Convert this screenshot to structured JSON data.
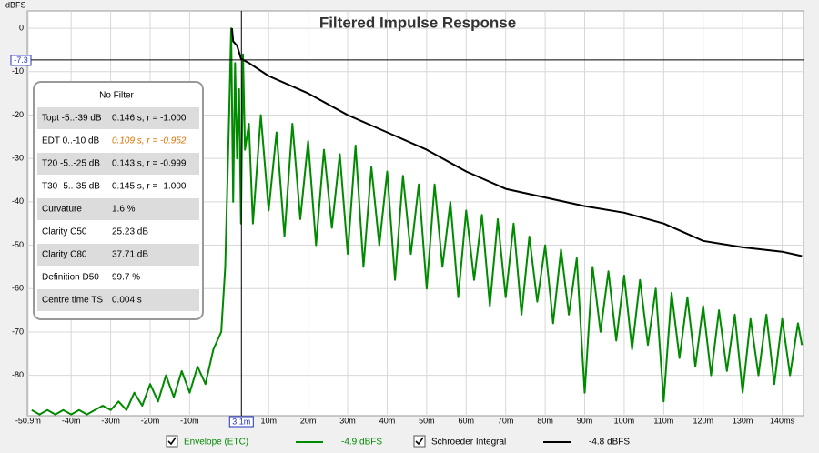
{
  "chart_data": {
    "type": "line",
    "title": "Filtered Impulse Response",
    "y_label": "dBFS",
    "xlim": [
      -51.1,
      145.4
    ],
    "ylim": [
      -89.3,
      4
    ],
    "grid": true,
    "xticks": [
      {
        "value": -50.9,
        "label": "-50.9m"
      },
      {
        "value": -40,
        "label": "-40m"
      },
      {
        "value": -30,
        "label": "-30m"
      },
      {
        "value": -20,
        "label": "-20m"
      },
      {
        "value": -10,
        "label": "-10m"
      },
      {
        "value": 10,
        "label": "10m"
      },
      {
        "value": 20,
        "label": "20m"
      },
      {
        "value": 30,
        "label": "30m"
      },
      {
        "value": 40,
        "label": "40m"
      },
      {
        "value": 50,
        "label": "50m"
      },
      {
        "value": 60,
        "label": "60m"
      },
      {
        "value": 70,
        "label": "70m"
      },
      {
        "value": 80,
        "label": "80m"
      },
      {
        "value": 90,
        "label": "90m"
      },
      {
        "value": 100,
        "label": "100m"
      },
      {
        "value": 110,
        "label": "110m"
      },
      {
        "value": 120,
        "label": "120m"
      },
      {
        "value": 130,
        "label": "130m"
      },
      {
        "value": 140,
        "label": "140ms"
      }
    ],
    "yticks": [
      0,
      -10,
      -20,
      -30,
      -40,
      -50,
      -60,
      -70,
      -80
    ],
    "cursor": {
      "x": {
        "value": 3.1,
        "label": "3.1m"
      },
      "y": {
        "value": -7.3,
        "label": "-7.3"
      }
    },
    "series": [
      {
        "name": "Envelope (ETC)",
        "color": "#008a00",
        "readout": "-4.9 dBFS",
        "x": [
          -50,
          -48,
          -46,
          -44,
          -42,
          -40,
          -38,
          -36,
          -34,
          -32,
          -30,
          -28,
          -26,
          -24,
          -22,
          -20,
          -18,
          -16,
          -14,
          -12,
          -10,
          -8,
          -6,
          -4,
          -2,
          -1,
          0,
          0.5,
          1,
          1.5,
          2,
          2.5,
          3,
          3.5,
          4,
          5,
          6,
          8,
          10,
          12,
          14,
          16,
          18,
          20,
          22,
          24,
          26,
          28,
          30,
          32,
          34,
          36,
          38,
          40,
          42,
          44,
          46,
          48,
          50,
          52,
          54,
          56,
          58,
          60,
          62,
          64,
          66,
          68,
          70,
          72,
          74,
          76,
          78,
          80,
          82,
          84,
          86,
          88,
          90,
          92,
          94,
          96,
          98,
          100,
          102,
          104,
          106,
          108,
          110,
          112,
          114,
          116,
          118,
          120,
          122,
          124,
          126,
          128,
          130,
          132,
          134,
          136,
          138,
          140,
          142,
          144,
          145
        ],
        "values": [
          -88,
          -89,
          -88,
          -89,
          -88,
          -89,
          -88,
          -89,
          -88,
          -87,
          -88,
          -86,
          -88,
          -84,
          -87,
          -82,
          -86,
          -80,
          -85,
          -79,
          -84,
          -78,
          -82,
          -74,
          -70,
          -55,
          -20,
          0,
          -40,
          -8,
          -30,
          -14,
          -45,
          -6,
          -28,
          -22,
          -45,
          -20,
          -42,
          -24,
          -48,
          -22,
          -44,
          -26,
          -50,
          -28,
          -46,
          -29,
          -52,
          -27,
          -55,
          -32,
          -50,
          -33,
          -58,
          -34,
          -52,
          -36,
          -60,
          -36,
          -55,
          -40,
          -62,
          -42,
          -58,
          -43,
          -64,
          -44,
          -62,
          -45,
          -66,
          -48,
          -63,
          -50,
          -68,
          -51,
          -66,
          -53,
          -84,
          -55,
          -70,
          -56,
          -72,
          -57,
          -74,
          -58,
          -73,
          -60,
          -86,
          -61,
          -76,
          -62,
          -78,
          -64,
          -80,
          -65,
          -79,
          -66,
          -84,
          -67,
          -80,
          -66,
          -82,
          -67,
          -80,
          -68,
          -73
        ]
      },
      {
        "name": "Schroeder Integral",
        "color": "#000000",
        "readout": "-4.8 dBFS",
        "x": [
          0.7,
          1,
          2,
          3,
          5,
          10,
          20,
          30,
          40,
          50,
          60,
          70,
          80,
          90,
          100,
          110,
          115,
          120,
          130,
          140,
          145
        ],
        "values": [
          0,
          -3,
          -4,
          -7,
          -8,
          -11,
          -15,
          -20,
          -24,
          -28,
          -33,
          -37,
          -39,
          -41,
          -42.5,
          -45,
          -47,
          -49,
          -50.5,
          -51.5,
          -52.5
        ]
      }
    ]
  },
  "table": {
    "title": "No Filter",
    "rows": [
      {
        "label": "Topt -5..-39 dB",
        "value": "0.146 s,  r = -1.000"
      },
      {
        "label": "EDT  0..-10 dB",
        "value": "0.109 s,  r = -0.952",
        "color": "#e07000"
      },
      {
        "label": "T20 -5..-25 dB",
        "value": "0.143 s,  r = -0.999"
      },
      {
        "label": "T30 -5..-35 dB",
        "value": "0.145 s,  r = -1.000"
      },
      {
        "label": "Curvature",
        "value": "1.6 %"
      },
      {
        "label": "Clarity C50",
        "value": "25.23 dB"
      },
      {
        "label": "Clarity C80",
        "value": "37.71 dB"
      },
      {
        "label": "Definition D50",
        "value": "99.7 %"
      },
      {
        "label": "Centre time TS",
        "value": "0.004 s"
      }
    ]
  }
}
